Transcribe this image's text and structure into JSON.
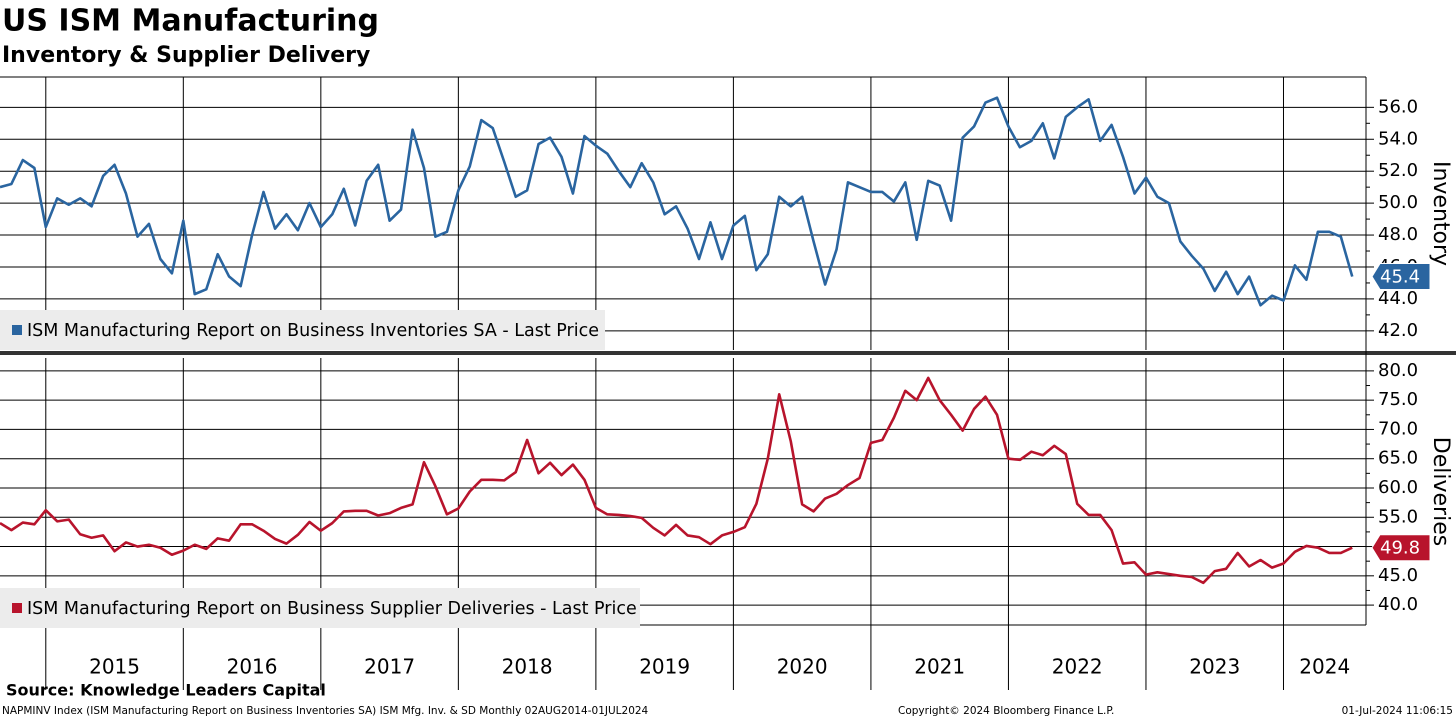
{
  "chart_data": [
    {
      "type": "line",
      "title": "US ISM Manufacturing",
      "subtitle": "Inventory & Supplier Delivery",
      "y_label": "Inventory",
      "xlim": [
        2014.667,
        2024.6
      ],
      "xticks": [
        2015,
        2016,
        2017,
        2018,
        2019,
        2020,
        2021,
        2022,
        2023,
        2024
      ],
      "ylim": [
        40.8,
        57.9
      ],
      "yticks": [
        {
          "value": 42,
          "label": "42.0"
        },
        {
          "value": 44,
          "label": "44.0"
        },
        {
          "value": 46,
          "label": "46.0"
        },
        {
          "value": 48,
          "label": "48.0"
        },
        {
          "value": 50,
          "label": "50.0"
        },
        {
          "value": 52,
          "label": "52.0"
        },
        {
          "value": 54,
          "label": "54.0"
        },
        {
          "value": 56,
          "label": "56.0"
        }
      ],
      "grid": true,
      "x": [
        2014.667,
        2014.75,
        2014.833,
        2014.917,
        2015.0,
        2015.083,
        2015.167,
        2015.25,
        2015.333,
        2015.417,
        2015.5,
        2015.583,
        2015.667,
        2015.75,
        2015.833,
        2015.917,
        2016.0,
        2016.083,
        2016.167,
        2016.25,
        2016.333,
        2016.417,
        2016.5,
        2016.583,
        2016.667,
        2016.75,
        2016.833,
        2016.917,
        2017.0,
        2017.083,
        2017.167,
        2017.25,
        2017.333,
        2017.417,
        2017.5,
        2017.583,
        2017.667,
        2017.75,
        2017.833,
        2017.917,
        2018.0,
        2018.083,
        2018.167,
        2018.25,
        2018.333,
        2018.417,
        2018.5,
        2018.583,
        2018.667,
        2018.75,
        2018.833,
        2018.917,
        2019.0,
        2019.083,
        2019.167,
        2019.25,
        2019.333,
        2019.417,
        2019.5,
        2019.583,
        2019.667,
        2019.75,
        2019.833,
        2019.917,
        2020.0,
        2020.083,
        2020.167,
        2020.25,
        2020.333,
        2020.417,
        2020.5,
        2020.583,
        2020.667,
        2020.75,
        2020.833,
        2020.917,
        2021.0,
        2021.083,
        2021.167,
        2021.25,
        2021.333,
        2021.417,
        2021.5,
        2021.583,
        2021.667,
        2021.75,
        2021.833,
        2021.917,
        2022.0,
        2022.083,
        2022.167,
        2022.25,
        2022.333,
        2022.417,
        2022.5,
        2022.583,
        2022.667,
        2022.75,
        2022.833,
        2022.917,
        2023.0,
        2023.083,
        2023.167,
        2023.25,
        2023.333,
        2023.417,
        2023.5,
        2023.583,
        2023.667,
        2023.75,
        2023.833,
        2023.917,
        2024.0,
        2024.083,
        2024.167,
        2024.25,
        2024.333,
        2024.417,
        2024.5
      ],
      "series": [
        {
          "name": "ISM Manufacturing Report on Business Inventories SA - Last Price",
          "color": "#2a65a0",
          "values": [
            51.0,
            51.2,
            52.7,
            52.2,
            48.5,
            50.3,
            49.9,
            50.3,
            49.8,
            51.7,
            52.4,
            50.6,
            47.9,
            48.7,
            46.5,
            45.6,
            48.9,
            44.3,
            44.6,
            46.8,
            45.4,
            44.8,
            48.0,
            50.7,
            48.4,
            49.3,
            48.3,
            50.0,
            48.5,
            49.3,
            50.9,
            48.6,
            51.4,
            52.4,
            48.9,
            49.6,
            54.6,
            52.2,
            47.9,
            48.2,
            50.8,
            52.3,
            55.2,
            54.7,
            52.6,
            50.4,
            50.8,
            53.7,
            54.1,
            52.9,
            50.6,
            54.2,
            53.6,
            53.1,
            52.0,
            51.0,
            52.5,
            51.3,
            49.3,
            49.8,
            48.4,
            46.5,
            48.8,
            46.5,
            48.6,
            49.2,
            45.8,
            46.8,
            50.4,
            49.8,
            50.4,
            47.6,
            44.9,
            47.1,
            51.3,
            51.0,
            50.7,
            50.7,
            50.1,
            51.3,
            47.7,
            51.4,
            51.1,
            48.9,
            54.1,
            54.8,
            56.3,
            56.6,
            54.8,
            53.5,
            53.9,
            55.0,
            52.8,
            55.4,
            56.0,
            56.5,
            53.9,
            54.9,
            52.9,
            50.6,
            51.6,
            50.4,
            50.0,
            47.6,
            46.7,
            45.9,
            44.5,
            45.7,
            44.3,
            45.4,
            43.6,
            44.2,
            43.9,
            46.1,
            45.2,
            48.2,
            48.2,
            47.9,
            45.4
          ]
        }
      ]
    },
    {
      "type": "line",
      "y_label": "Deliveries",
      "xlim": [
        2014.667,
        2024.6
      ],
      "xticks": [
        2015,
        2016,
        2017,
        2018,
        2019,
        2020,
        2021,
        2022,
        2023,
        2024
      ],
      "ylim": [
        36.6,
        82.2
      ],
      "yticks": [
        {
          "value": 40,
          "label": "40.0"
        },
        {
          "value": 45,
          "label": "45.0"
        },
        {
          "value": 50,
          "label": "50.0"
        },
        {
          "value": 55,
          "label": "55.0"
        },
        {
          "value": 60,
          "label": "60.0"
        },
        {
          "value": 65,
          "label": "65.0"
        },
        {
          "value": 70,
          "label": "70.0"
        },
        {
          "value": 75,
          "label": "75.0"
        },
        {
          "value": 80,
          "label": "80.0"
        }
      ],
      "grid": true,
      "x": [
        2014.667,
        2014.75,
        2014.833,
        2014.917,
        2015.0,
        2015.083,
        2015.167,
        2015.25,
        2015.333,
        2015.417,
        2015.5,
        2015.583,
        2015.667,
        2015.75,
        2015.833,
        2015.917,
        2016.0,
        2016.083,
        2016.167,
        2016.25,
        2016.333,
        2016.417,
        2016.5,
        2016.583,
        2016.667,
        2016.75,
        2016.833,
        2016.917,
        2017.0,
        2017.083,
        2017.167,
        2017.25,
        2017.333,
        2017.417,
        2017.5,
        2017.583,
        2017.667,
        2017.75,
        2017.833,
        2017.917,
        2018.0,
        2018.083,
        2018.167,
        2018.25,
        2018.333,
        2018.417,
        2018.5,
        2018.583,
        2018.667,
        2018.75,
        2018.833,
        2018.917,
        2019.0,
        2019.083,
        2019.167,
        2019.25,
        2019.333,
        2019.417,
        2019.5,
        2019.583,
        2019.667,
        2019.75,
        2019.833,
        2019.917,
        2020.0,
        2020.083,
        2020.167,
        2020.25,
        2020.333,
        2020.417,
        2020.5,
        2020.583,
        2020.667,
        2020.75,
        2020.833,
        2020.917,
        2021.0,
        2021.083,
        2021.167,
        2021.25,
        2021.333,
        2021.417,
        2021.5,
        2021.583,
        2021.667,
        2021.75,
        2021.833,
        2021.917,
        2022.0,
        2022.083,
        2022.167,
        2022.25,
        2022.333,
        2022.417,
        2022.5,
        2022.583,
        2022.667,
        2022.75,
        2022.833,
        2022.917,
        2023.0,
        2023.083,
        2023.167,
        2023.25,
        2023.333,
        2023.417,
        2023.5,
        2023.583,
        2023.667,
        2023.75,
        2023.833,
        2023.917,
        2024.0,
        2024.083,
        2024.167,
        2024.25,
        2024.333,
        2024.417,
        2024.5
      ],
      "series": [
        {
          "name": "ISM Manufacturing Report on Business Supplier Deliveries - Last Price",
          "color": "#b8142c",
          "values": [
            54.0,
            52.8,
            54.1,
            53.8,
            56.2,
            54.3,
            54.6,
            52.1,
            51.5,
            51.9,
            49.2,
            50.7,
            50.0,
            50.3,
            49.8,
            48.6,
            49.3,
            50.3,
            49.6,
            51.4,
            51.0,
            53.8,
            53.8,
            52.7,
            51.3,
            50.5,
            52.0,
            54.2,
            52.7,
            54.0,
            56.0,
            56.1,
            56.1,
            55.3,
            55.7,
            56.6,
            57.2,
            64.4,
            60.3,
            55.5,
            56.5,
            59.4,
            61.4,
            61.4,
            61.3,
            62.7,
            68.2,
            62.5,
            64.3,
            62.2,
            64.0,
            61.4,
            56.6,
            55.5,
            55.4,
            55.2,
            54.9,
            53.2,
            51.9,
            53.7,
            51.9,
            51.6,
            50.4,
            51.9,
            52.5,
            53.3,
            57.3,
            65.0,
            76.0,
            68.0,
            57.2,
            56.0,
            58.2,
            59.0,
            60.5,
            61.7,
            67.7,
            68.2,
            72.0,
            76.6,
            75.0,
            78.8,
            75.0,
            72.5,
            69.8,
            73.5,
            75.6,
            72.5,
            65.0,
            64.8,
            66.2,
            65.6,
            67.2,
            65.8,
            57.3,
            55.4,
            55.4,
            52.8,
            47.1,
            47.3,
            45.2,
            45.6,
            45.3,
            45.0,
            44.8,
            43.8,
            45.8,
            46.2,
            48.9,
            46.6,
            47.7,
            46.4,
            47.1,
            49.1,
            50.1,
            49.8,
            48.9,
            48.9,
            49.8
          ]
        }
      ]
    }
  ],
  "footer": {
    "source": "Source: Knowledge Leaders Capital",
    "info": "NAPMINV Index (ISM Manufacturing Report on Business Inventories SA) ISM Mfg. Inv. & SD  Monthly 02AUG2014-01JUL2024",
    "copyright": "Copyright© 2024 Bloomberg Finance L.P.",
    "date": "01-Jul-2024 11:06:15"
  }
}
